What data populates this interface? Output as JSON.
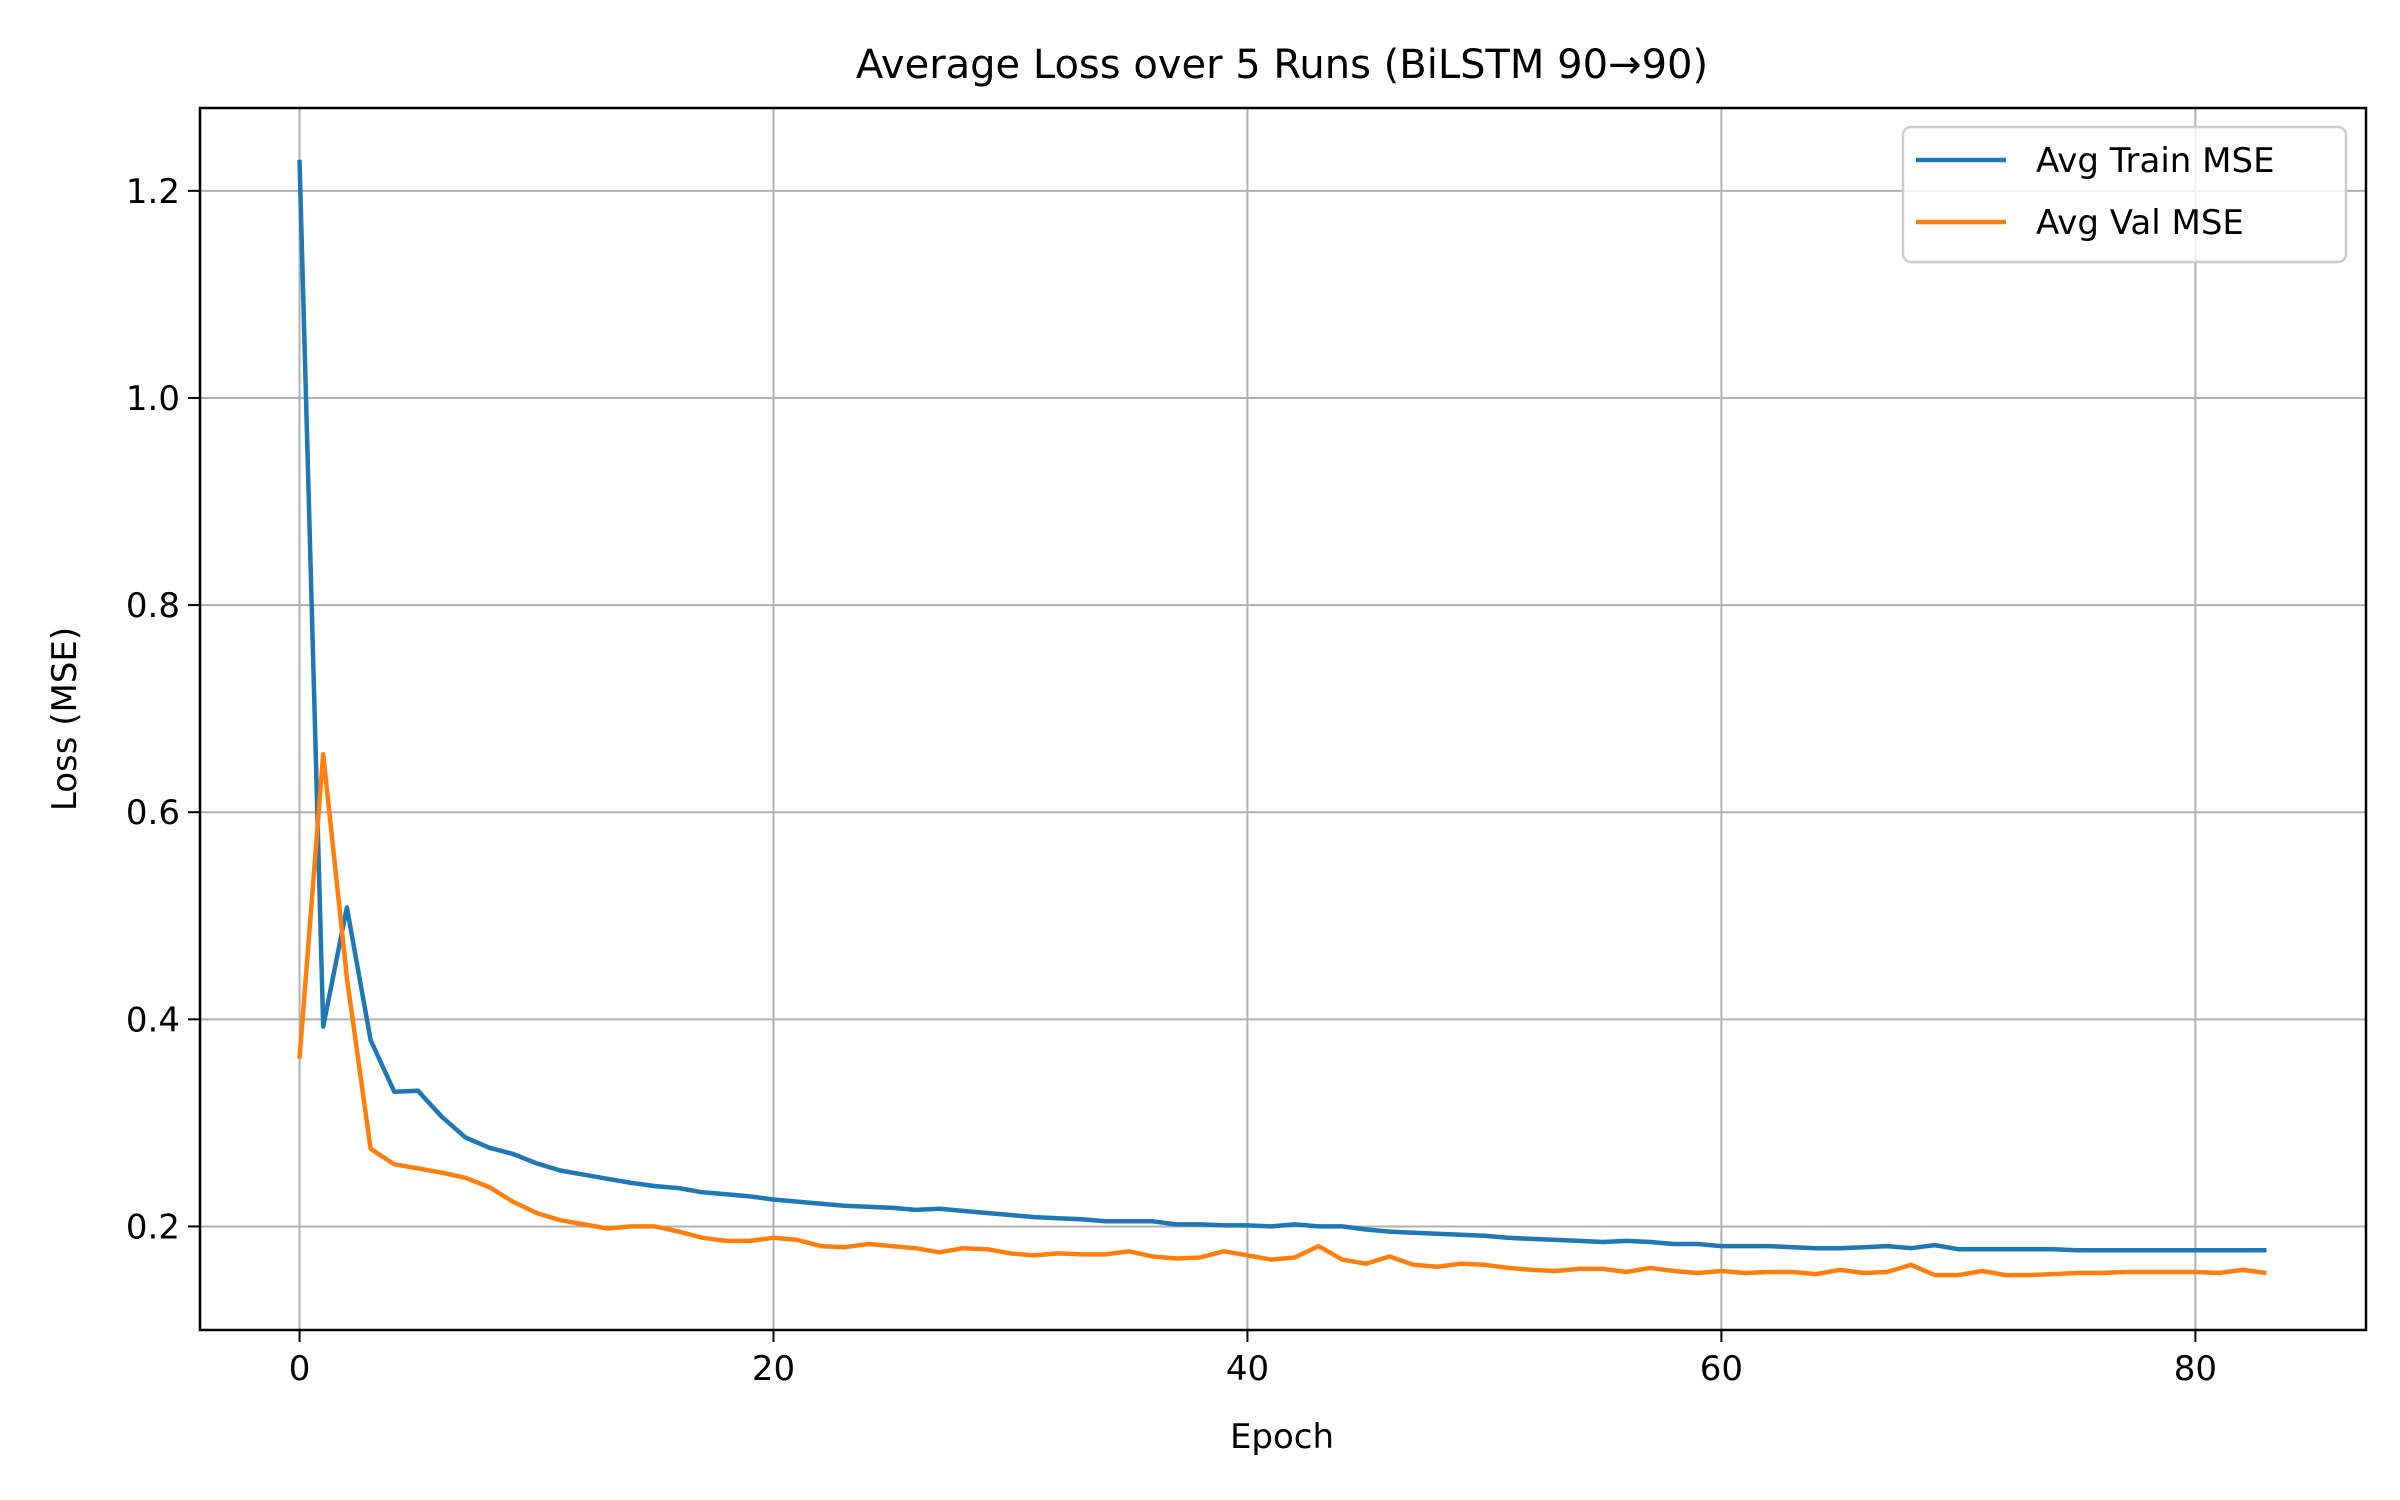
{
  "chart_data": {
    "type": "line",
    "title": "Average Loss over 5 Runs (BiLSTM 90→90)",
    "xlabel": "Epoch",
    "ylabel": "Loss (MSE)",
    "xlim": [
      -4.2,
      87.2
    ],
    "ylim": [
      0.1,
      1.28
    ],
    "xticks": [
      0,
      20,
      40,
      60,
      80
    ],
    "yticks": [
      0.2,
      0.4,
      0.6,
      0.8,
      1.0,
      1.2
    ],
    "xtick_labels": [
      "0",
      "20",
      "40",
      "60",
      "80"
    ],
    "ytick_labels": [
      "0.2",
      "0.4",
      "0.6",
      "0.8",
      "1.0",
      "1.2"
    ],
    "grid": true,
    "legend_position": "top-right",
    "series": [
      {
        "name": "Avg Train MSE",
        "color": "#1f77b4",
        "values": [
          1.23,
          0.393,
          0.508,
          0.38,
          0.33,
          0.331,
          0.306,
          0.286,
          0.276,
          0.27,
          0.261,
          0.254,
          0.25,
          0.246,
          0.242,
          0.239,
          0.237,
          0.233,
          0.231,
          0.229,
          0.226,
          0.224,
          0.222,
          0.22,
          0.219,
          0.218,
          0.216,
          0.217,
          0.215,
          0.213,
          0.211,
          0.209,
          0.208,
          0.207,
          0.205,
          0.205,
          0.205,
          0.202,
          0.202,
          0.201,
          0.201,
          0.2,
          0.202,
          0.2,
          0.2,
          0.197,
          0.195,
          0.194,
          0.193,
          0.192,
          0.191,
          0.189,
          0.188,
          0.187,
          0.186,
          0.185,
          0.186,
          0.185,
          0.183,
          0.183,
          0.181,
          0.181,
          0.181,
          0.18,
          0.179,
          0.179,
          0.18,
          0.181,
          0.179,
          0.182,
          0.178,
          0.178,
          0.178,
          0.178,
          0.178,
          0.177,
          0.177,
          0.177,
          0.177,
          0.177,
          0.177,
          0.177,
          0.177,
          0.177
        ]
      },
      {
        "name": "Avg Val MSE",
        "color": "#ff7f0e",
        "values": [
          0.362,
          0.656,
          0.44,
          0.275,
          0.26,
          0.256,
          0.252,
          0.247,
          0.238,
          0.224,
          0.213,
          0.206,
          0.202,
          0.198,
          0.2,
          0.2,
          0.195,
          0.189,
          0.186,
          0.186,
          0.189,
          0.187,
          0.181,
          0.18,
          0.183,
          0.181,
          0.179,
          0.175,
          0.179,
          0.178,
          0.174,
          0.172,
          0.174,
          0.173,
          0.173,
          0.176,
          0.171,
          0.169,
          0.17,
          0.176,
          0.172,
          0.168,
          0.17,
          0.181,
          0.168,
          0.164,
          0.171,
          0.163,
          0.161,
          0.164,
          0.163,
          0.16,
          0.158,
          0.157,
          0.159,
          0.159,
          0.156,
          0.16,
          0.157,
          0.155,
          0.157,
          0.155,
          0.156,
          0.156,
          0.154,
          0.158,
          0.155,
          0.156,
          0.163,
          0.153,
          0.153,
          0.157,
          0.153,
          0.153,
          0.154,
          0.155,
          0.155,
          0.156,
          0.156,
          0.156,
          0.156,
          0.155,
          0.158,
          0.155
        ]
      }
    ]
  }
}
